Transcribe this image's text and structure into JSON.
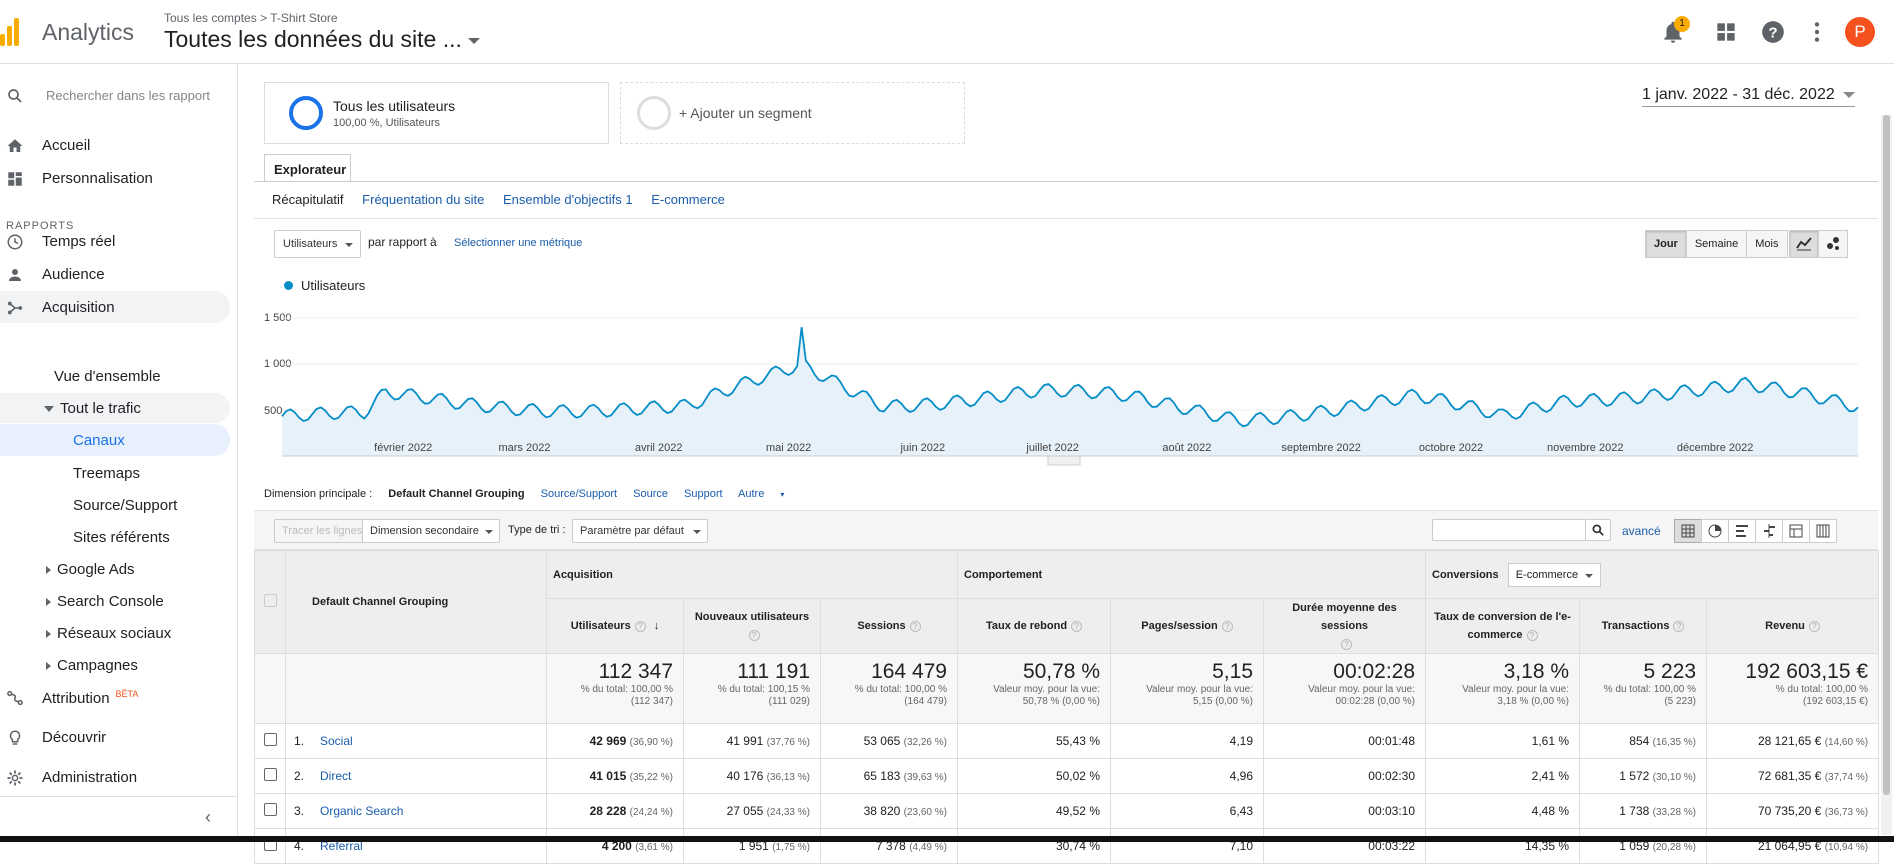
{
  "header": {
    "app_name": "Analytics",
    "breadcrumb_account": "Tous les comptes",
    "breadcrumb_property": "T-Shirt Store",
    "view_title": "Toutes les données du site ...",
    "notifications_count": "1",
    "avatar_letter": "P",
    "brand_color": "#f9ab00",
    "avatar_color": "#f4511e"
  },
  "sidebar": {
    "search_placeholder": "Rechercher dans les rapport",
    "home": "Accueil",
    "customization": "Personnalisation",
    "section_reports": "RAPPORTS",
    "realtime": "Temps réel",
    "audience": "Audience",
    "acquisition": "Acquisition",
    "overview": "Vue d'ensemble",
    "all_traffic": "Tout le trafic",
    "channels": "Canaux",
    "treemaps": "Treemaps",
    "source_medium": "Source/Support",
    "referrals": "Sites référents",
    "google_ads": "Google Ads",
    "search_console": "Search Console",
    "social": "Réseaux sociaux",
    "campaigns": "Campagnes",
    "attribution": "Attribution",
    "beta": "BÊTA",
    "discover": "Découvrir",
    "admin": "Administration"
  },
  "segments": {
    "seg1_title": "Tous les utilisateurs",
    "seg1_sub": "100,00 %, Utilisateurs",
    "seg2_title": "+ Ajouter un segment"
  },
  "date_range": "1 janv. 2022 - 31 déc. 2022",
  "explorer": {
    "tab": "Explorateur",
    "subtabs": [
      "Récapitulatif",
      "Fréquentation du site",
      "Ensemble d'objectifs 1",
      "E-commerce"
    ]
  },
  "chart_controls": {
    "metric": "Utilisateurs",
    "compare_label": "par rapport à",
    "select_metric": "Sélectionner une métrique",
    "day": "Jour",
    "week": "Semaine",
    "month": "Mois"
  },
  "chart_data": {
    "type": "area",
    "series": [
      {
        "name": "Utilisateurs",
        "color": "#058dc7"
      }
    ],
    "ylim": [
      0,
      1500
    ],
    "yticks": [
      "1 500",
      "1 000",
      "500"
    ],
    "xticks": [
      "février 2022",
      "mars 2022",
      "avril 2022",
      "mai 2022",
      "juin 2022",
      "juillet 2022",
      "août 2022",
      "septembre 2022",
      "octobre 2022",
      "novembre 2022",
      "décembre 2022"
    ],
    "x": [
      "janv.",
      "févr.",
      "mars",
      "avr.",
      "mai",
      "juin",
      "juil.",
      "août",
      "sept.",
      "oct.",
      "nov.",
      "déc."
    ],
    "y_key_points": [
      {
        "x": "2022-01-01",
        "y": 420
      },
      {
        "x": "2022-01-20",
        "y": 400
      },
      {
        "x": "2022-01-25",
        "y": 800
      },
      {
        "x": "2022-02-10",
        "y": 680
      },
      {
        "x": "2022-03-05",
        "y": 620
      },
      {
        "x": "2022-04-05",
        "y": 560
      },
      {
        "x": "2022-05-01",
        "y": 1400
      },
      {
        "x": "2022-05-20",
        "y": 700
      },
      {
        "x": "2022-06-25",
        "y": 880
      },
      {
        "x": "2022-07-15",
        "y": 750
      },
      {
        "x": "2022-08-10",
        "y": 420
      },
      {
        "x": "2022-09-20",
        "y": 760
      },
      {
        "x": "2022-10-10",
        "y": 360
      },
      {
        "x": "2022-10-25",
        "y": 760
      },
      {
        "x": "2022-11-20",
        "y": 980
      },
      {
        "x": "2022-12-05",
        "y": 1030
      },
      {
        "x": "2022-12-31",
        "y": 520
      }
    ]
  },
  "dimensions": {
    "label": "Dimension principale :",
    "active": "Default Channel Grouping",
    "others": [
      "Source/Support",
      "Source",
      "Support",
      "Autre"
    ]
  },
  "table_toolbar": {
    "plot_rows": "Tracer les lignes",
    "secondary_dim": "Dimension secondaire",
    "sort_label": "Type de tri :",
    "sort_value": "Paramètre par défaut",
    "advanced": "avancé"
  },
  "table": {
    "group_acquisition": "Acquisition",
    "group_behavior": "Comportement",
    "group_conversions": "Conversions",
    "conversions_select": "E-commerce",
    "dim_header": "Default Channel Grouping",
    "columns": [
      "Utilisateurs",
      "Nouveaux utilisateurs",
      "Sessions",
      "Taux de rebond",
      "Pages/session",
      "Durée moyenne des sessions",
      "Taux de conversion de l'e-commerce",
      "Transactions",
      "Revenu"
    ],
    "totals": [
      {
        "v": "112 347",
        "s1": "% du total: 100,00 %",
        "s2": "(112 347)"
      },
      {
        "v": "111 191",
        "s1": "% du total: 100,15 %",
        "s2": "(111 029)"
      },
      {
        "v": "164 479",
        "s1": "% du total: 100,00 %",
        "s2": "(164 479)"
      },
      {
        "v": "50,78 %",
        "s1": "Valeur moy. pour la vue:",
        "s2": "50,78 % (0,00 %)"
      },
      {
        "v": "5,15",
        "s1": "Valeur moy. pour la vue:",
        "s2": "5,15 (0,00 %)"
      },
      {
        "v": "00:02:28",
        "s1": "Valeur moy. pour la vue:",
        "s2": "00:02:28 (0,00 %)"
      },
      {
        "v": "3,18 %",
        "s1": "Valeur moy. pour la vue:",
        "s2": "3,18 % (0,00 %)"
      },
      {
        "v": "5 223",
        "s1": "% du total: 100,00 %",
        "s2": "(5 223)"
      },
      {
        "v": "192 603,15 €",
        "s1": "% du total: 100,00 %",
        "s2": "(192 603,15 €)"
      }
    ],
    "rows": [
      {
        "idx": "1.",
        "name": "Social",
        "users": "42 969",
        "users_pct": "(36,90 %)",
        "new": "41 991",
        "new_pct": "(37,76 %)",
        "sessions": "53 065",
        "sessions_pct": "(32,26 %)",
        "bounce": "55,43 %",
        "pps": "4,19",
        "dur": "00:01:48",
        "conv": "1,61 %",
        "trans": "854",
        "trans_pct": "(16,35 %)",
        "rev": "28 121,65 €",
        "rev_pct": "(14,60 %)"
      },
      {
        "idx": "2.",
        "name": "Direct",
        "users": "41 015",
        "users_pct": "(35,22 %)",
        "new": "40 176",
        "new_pct": "(36,13 %)",
        "sessions": "65 183",
        "sessions_pct": "(39,63 %)",
        "bounce": "50,02 %",
        "pps": "4,96",
        "dur": "00:02:30",
        "conv": "2,41 %",
        "trans": "1 572",
        "trans_pct": "(30,10 %)",
        "rev": "72 681,35 €",
        "rev_pct": "(37,74 %)"
      },
      {
        "idx": "3.",
        "name": "Organic Search",
        "users": "28 228",
        "users_pct": "(24,24 %)",
        "new": "27 055",
        "new_pct": "(24,33 %)",
        "sessions": "38 820",
        "sessions_pct": "(23,60 %)",
        "bounce": "49,52 %",
        "pps": "6,43",
        "dur": "00:03:10",
        "conv": "4,48 %",
        "trans": "1 738",
        "trans_pct": "(33,28 %)",
        "rev": "70 735,20 €",
        "rev_pct": "(36,73 %)"
      },
      {
        "idx": "4.",
        "name": "Referral",
        "users": "4 200",
        "users_pct": "(3,61 %)",
        "new": "1 951",
        "new_pct": "(1,75 %)",
        "sessions": "7 378",
        "sessions_pct": "(4,49 %)",
        "bounce": "30,74 %",
        "pps": "7,10",
        "dur": "00:03:22",
        "conv": "14,35 %",
        "trans": "1 059",
        "trans_pct": "(20,28 %)",
        "rev": "21 064,95 €",
        "rev_pct": "(10,94 %)"
      }
    ]
  }
}
